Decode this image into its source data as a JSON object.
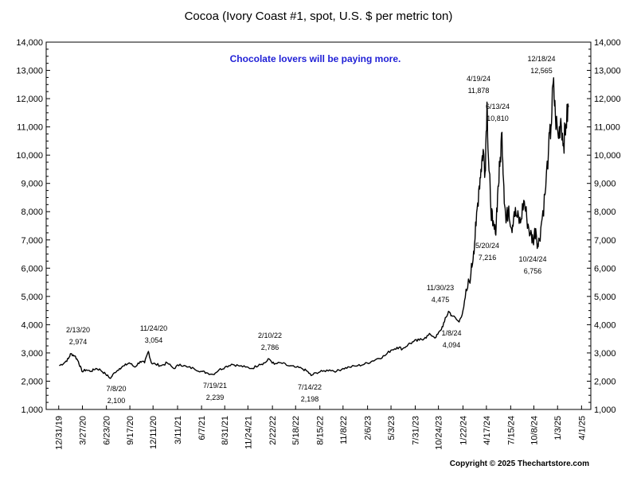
{
  "chart_data": {
    "type": "line",
    "title": "Cocoa (Ivory Coast #1, spot, U.S. $ per metric ton)",
    "subtitle": "Chocolate lovers will be paying more.",
    "copyright": "Copyright © 2025 Thechartstore.com",
    "ylim": [
      1000,
      14000
    ],
    "y_ticks": [
      "1,000",
      "2,000",
      "3,000",
      "4,000",
      "5,000",
      "6,000",
      "7,000",
      "8,000",
      "9,000",
      "10,000",
      "11,000",
      "12,000",
      "13,000",
      "14,000"
    ],
    "y_tick_values": [
      1000,
      2000,
      3000,
      4000,
      5000,
      6000,
      7000,
      8000,
      9000,
      10000,
      11000,
      12000,
      13000,
      14000
    ],
    "x_range": [
      "2019-11-15",
      "2025-05-05"
    ],
    "x_ticks": [
      "12/31/19",
      "3/27/20",
      "6/23/20",
      "9/17/20",
      "12/11/20",
      "3/11/21",
      "6/7/21",
      "8/31/21",
      "11/24/21",
      "2/22/22",
      "5/18/22",
      "8/15/22",
      "11/8/22",
      "2/6/23",
      "5/3/23",
      "7/31/23",
      "10/24/23",
      "1/22/24",
      "4/17/24",
      "7/15/24",
      "10/8/24",
      "1/3/25",
      "4/1/25"
    ],
    "x_tick_dates": [
      "2019-12-31",
      "2020-03-27",
      "2020-06-23",
      "2020-09-17",
      "2020-12-11",
      "2021-03-11",
      "2021-06-07",
      "2021-08-31",
      "2021-11-24",
      "2022-02-22",
      "2022-05-18",
      "2022-08-15",
      "2022-11-08",
      "2023-02-06",
      "2023-05-03",
      "2023-07-31",
      "2023-10-24",
      "2024-01-22",
      "2024-04-17",
      "2024-07-15",
      "2024-10-08",
      "2025-01-03",
      "2025-04-01"
    ],
    "grid": false,
    "series": [
      {
        "x": [
          "2020-01-02",
          "2020-01-20",
          "2020-02-05",
          "2020-02-13",
          "2020-02-28",
          "2020-03-12",
          "2020-03-25",
          "2020-04-10",
          "2020-04-28",
          "2020-05-15",
          "2020-06-01",
          "2020-06-20",
          "2020-07-08",
          "2020-07-22",
          "2020-08-10",
          "2020-08-28",
          "2020-09-15",
          "2020-10-05",
          "2020-10-25",
          "2020-11-10",
          "2020-11-24",
          "2020-12-05",
          "2020-12-20",
          "2021-01-10",
          "2021-02-01",
          "2021-02-25",
          "2021-03-20",
          "2021-04-15",
          "2021-05-10",
          "2021-06-05",
          "2021-06-25",
          "2021-07-19",
          "2021-08-10",
          "2021-09-01",
          "2021-09-25",
          "2021-10-20",
          "2021-11-15",
          "2021-12-10",
          "2022-01-05",
          "2022-01-25",
          "2022-02-10",
          "2022-03-01",
          "2022-03-25",
          "2022-04-20",
          "2022-05-15",
          "2022-06-10",
          "2022-06-30",
          "2022-07-14",
          "2022-08-01",
          "2022-08-25",
          "2022-09-20",
          "2022-10-15",
          "2022-11-08",
          "2022-12-01",
          "2023-01-01",
          "2023-01-25",
          "2023-02-20",
          "2023-03-15",
          "2023-04-10",
          "2023-05-03",
          "2023-05-25",
          "2023-06-15",
          "2023-07-05",
          "2023-07-25",
          "2023-08-15",
          "2023-09-05",
          "2023-09-25",
          "2023-10-15",
          "2023-11-01",
          "2023-11-15",
          "2023-11-30",
          "2023-12-15",
          "2024-01-08",
          "2024-01-22",
          "2024-02-05",
          "2024-02-20",
          "2024-03-01",
          "2024-03-10",
          "2024-03-20",
          "2024-03-28",
          "2024-04-05",
          "2024-04-12",
          "2024-04-19",
          "2024-04-25",
          "2024-05-02",
          "2024-05-10",
          "2024-05-20",
          "2024-05-28",
          "2024-06-05",
          "2024-06-13",
          "2024-06-20",
          "2024-06-28",
          "2024-07-08",
          "2024-07-18",
          "2024-07-28",
          "2024-08-08",
          "2024-08-20",
          "2024-09-01",
          "2024-09-12",
          "2024-09-25",
          "2024-10-05",
          "2024-10-15",
          "2024-10-24",
          "2024-11-05",
          "2024-11-18",
          "2024-12-01",
          "2024-12-10",
          "2024-12-18",
          "2024-12-26",
          "2025-01-06",
          "2025-01-15",
          "2025-01-25",
          "2025-02-03",
          "2025-02-12"
        ],
        "values": [
          2550,
          2650,
          2800,
          2974,
          2900,
          2700,
          2350,
          2400,
          2350,
          2450,
          2400,
          2250,
          2100,
          2300,
          2450,
          2550,
          2650,
          2500,
          2700,
          2650,
          3054,
          2650,
          2600,
          2550,
          2650,
          2450,
          2600,
          2500,
          2450,
          2350,
          2300,
          2239,
          2400,
          2500,
          2600,
          2550,
          2500,
          2450,
          2600,
          2650,
          2786,
          2600,
          2650,
          2550,
          2500,
          2450,
          2350,
          2198,
          2300,
          2350,
          2400,
          2350,
          2450,
          2500,
          2550,
          2600,
          2700,
          2800,
          2900,
          3100,
          3200,
          3150,
          3300,
          3400,
          3450,
          3550,
          3650,
          3550,
          3800,
          4100,
          4475,
          4300,
          4094,
          4500,
          5200,
          5800,
          6600,
          7500,
          8800,
          9500,
          10200,
          9400,
          11878,
          9800,
          8400,
          7500,
          7216,
          8600,
          9600,
          10810,
          8900,
          7600,
          8200,
          7400,
          8000,
          7800,
          7600,
          8400,
          7800,
          7200,
          7000,
          7400,
          6756,
          7600,
          8600,
          10200,
          11000,
          12565,
          11400,
          10600,
          11300,
          10400,
          11100,
          11700
        ]
      }
    ],
    "annotations": [
      {
        "date": "2/13/20",
        "value": "2,974"
      },
      {
        "date": "7/8/20",
        "value": "2,100"
      },
      {
        "date": "11/24/20",
        "value": "3,054"
      },
      {
        "date": "7/19/21",
        "value": "2,239"
      },
      {
        "date": "2/10/22",
        "value": "2,786"
      },
      {
        "date": "7/14/22",
        "value": "2,198"
      },
      {
        "date": "11/30/23",
        "value": "4,475"
      },
      {
        "date": "1/8/24",
        "value": "4,094"
      },
      {
        "date": "4/19/24",
        "value": "11,878"
      },
      {
        "date": "6/13/24",
        "value": "10,810"
      },
      {
        "date": "5/20/24",
        "value": "7,216"
      },
      {
        "date": "10/24/24",
        "value": "6,756"
      },
      {
        "date": "12/18/24",
        "value": "12,565"
      }
    ]
  }
}
